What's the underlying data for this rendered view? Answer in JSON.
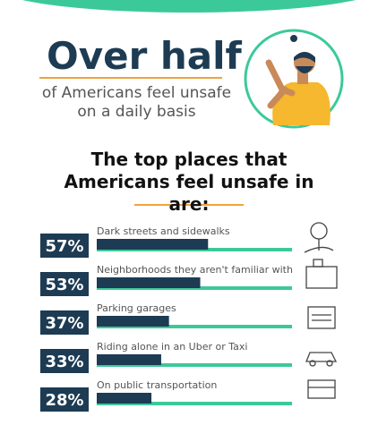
{
  "chart_data": {
    "type": "bar",
    "headline": "Over half",
    "subtitle": "of Americans feel unsafe on a daily basis",
    "title": "The top places that Americans feel unsafe in are:",
    "categories": [
      "Dark streets and sidewalks",
      "Neighborhoods they aren't familiar with",
      "Parking garages",
      "Riding alone in an Uber or Taxi",
      "On public transportation"
    ],
    "values": [
      57,
      53,
      37,
      33,
      28
    ],
    "value_labels": [
      "57%",
      "53%",
      "37%",
      "33%",
      "28%"
    ],
    "xlim": [
      0,
      100
    ],
    "color": "#1d3b53",
    "track_color": "#3cc99a"
  }
}
